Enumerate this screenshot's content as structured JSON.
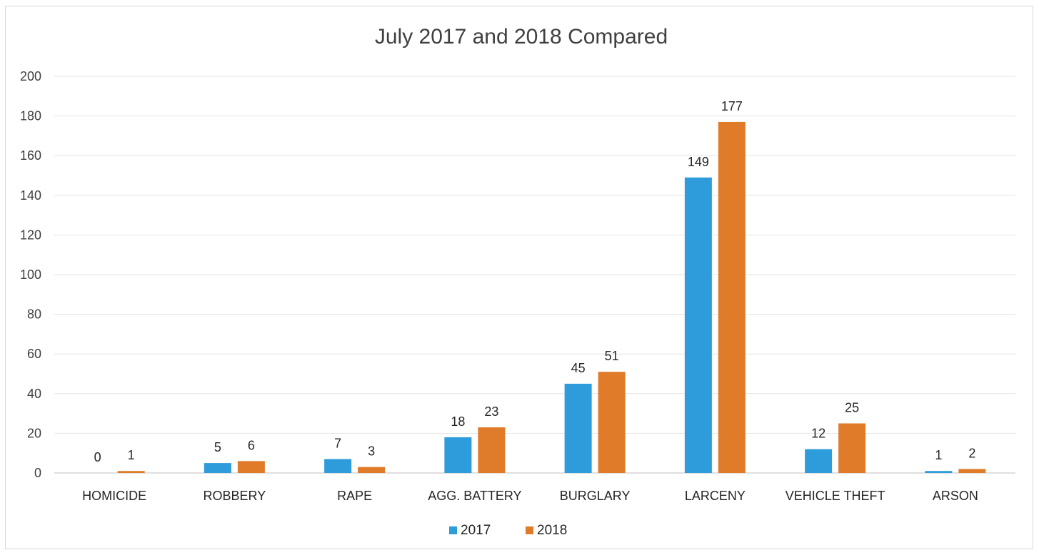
{
  "chart_data": {
    "type": "bar",
    "title": "July 2017 and 2018 Compared",
    "xlabel": "",
    "ylabel": "",
    "categories": [
      "HOMICIDE",
      "ROBBERY",
      "RAPE",
      "AGG. BATTERY",
      "BURGLARY",
      "LARCENY",
      "VEHICLE THEFT",
      "ARSON"
    ],
    "series": [
      {
        "name": "2017",
        "color": "#2e9bdb",
        "values": [
          0,
          5,
          7,
          18,
          45,
          149,
          12,
          1
        ]
      },
      {
        "name": "2018",
        "color": "#e07b2a",
        "values": [
          1,
          6,
          3,
          23,
          51,
          177,
          25,
          2
        ]
      }
    ],
    "ylim": [
      0,
      200
    ],
    "yticks": [
      0,
      20,
      40,
      60,
      80,
      100,
      120,
      140,
      160,
      180,
      200
    ],
    "grid": true,
    "legend_position": "bottom",
    "data_labels": true
  }
}
